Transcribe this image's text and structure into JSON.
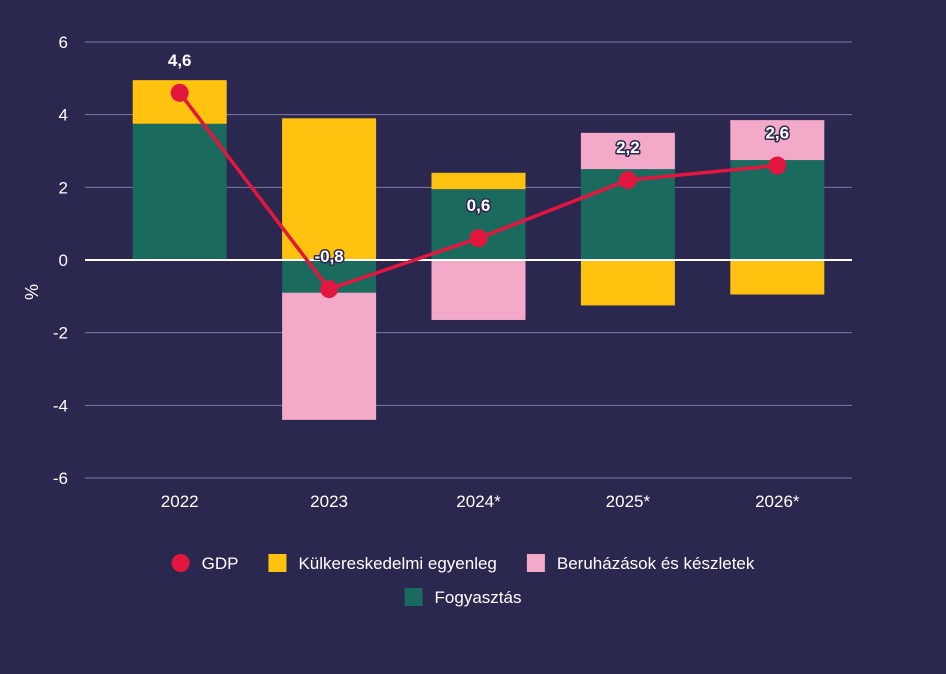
{
  "chart_data": {
    "type": "bar",
    "stacked": true,
    "categories": [
      "2022",
      "2023",
      "2024*",
      "2025*",
      "2026*"
    ],
    "ylabel": "%",
    "ylim": [
      -6,
      6
    ],
    "yticks": [
      6,
      4,
      2,
      0,
      -2,
      -4,
      -6
    ],
    "grid": true,
    "legend_position": "bottom",
    "series": [
      {
        "name": "Fogyasztás",
        "kind": "bar",
        "color": "#1a6b5e",
        "values": [
          3.75,
          -0.9,
          1.95,
          2.5,
          2.75
        ]
      },
      {
        "name": "Külkereskedelmi egyenleg",
        "kind": "bar",
        "color": "#ffc20e",
        "values": [
          1.2,
          3.9,
          0.45,
          -1.25,
          -0.95
        ]
      },
      {
        "name": "Beruházások és készletek",
        "kind": "bar",
        "color": "#f2aac8",
        "values": [
          0.0,
          -3.5,
          -1.65,
          1.0,
          1.1
        ]
      },
      {
        "name": "GDP",
        "kind": "line",
        "color": "#e3163f",
        "values": [
          4.6,
          -0.8,
          0.6,
          2.2,
          2.6
        ]
      }
    ],
    "data_labels": [
      "4,6",
      "-0,8",
      "0,6",
      "2,2",
      "2,6"
    ],
    "legend": [
      {
        "name": "GDP",
        "marker": "circle",
        "color": "#e3163f"
      },
      {
        "name": "Külkereskedelmi egyenleg",
        "marker": "square",
        "color": "#ffc20e"
      },
      {
        "name": "Beruházások és készletek",
        "marker": "square",
        "color": "#f2aac8"
      },
      {
        "name": "Fogyasztás",
        "marker": "square",
        "color": "#1a6b5e"
      }
    ]
  }
}
